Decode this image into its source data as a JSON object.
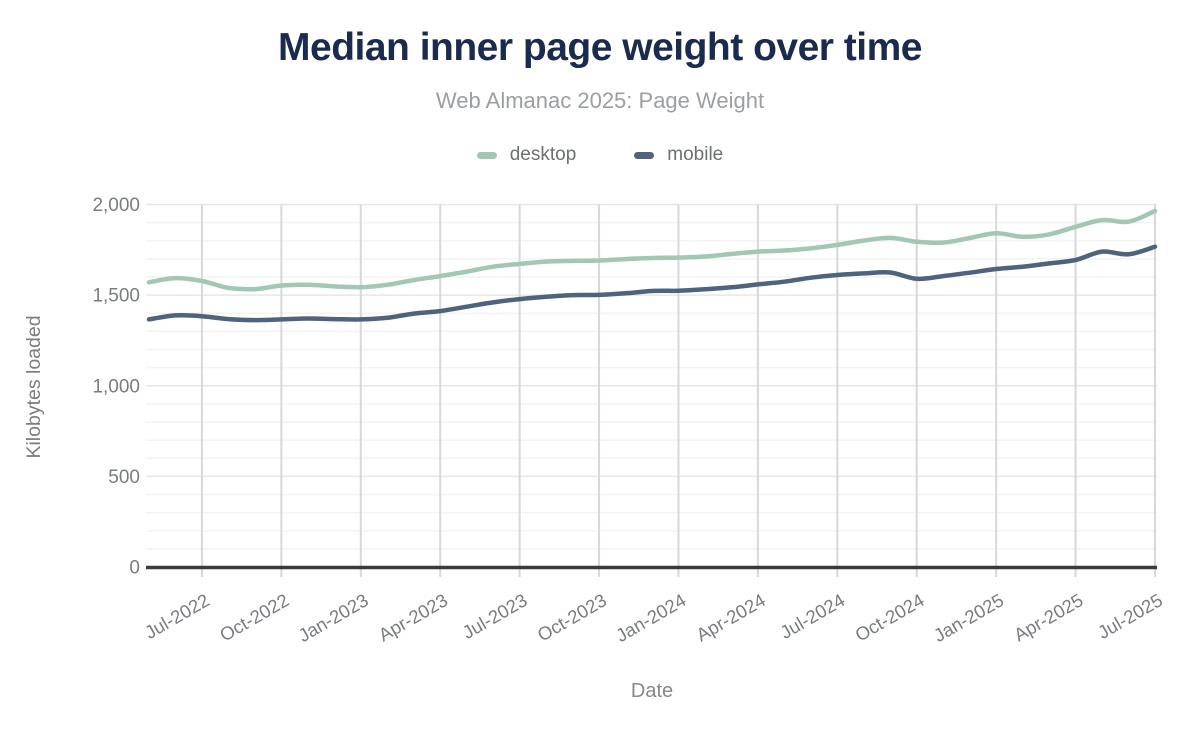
{
  "header": {
    "title": "Median inner page weight over time",
    "subtitle": "Web Almanac 2025: Page Weight"
  },
  "axes": {
    "y_title": "Kilobytes loaded",
    "x_title": "Date"
  },
  "colors": {
    "title": "#1b2b4d",
    "subtitle": "#9b9ea2",
    "axis_text": "#797c80",
    "vertical_gridline": "#d8d8d8",
    "major_gridline": "#e7e7e7",
    "minor_gridline": "#f3f3f3",
    "axis_line": "#3a3b3f",
    "background": "#ffffff",
    "desktop_series": "#a2c8b4",
    "mobile_series": "#4f637d"
  },
  "chart_data": {
    "type": "line",
    "title": "Median inner page weight over time",
    "subtitle": "Web Almanac 2025: Page Weight",
    "xlabel": "Date",
    "ylabel": "Kilobytes loaded",
    "ylim": [
      0,
      2000
    ],
    "grid": {
      "vertical_at_quarters": true,
      "horizontal_minor_step": 100,
      "horizontal_major_step": 500
    },
    "legend_position": "top",
    "x": [
      "May-2022",
      "Jun-2022",
      "Jul-2022",
      "Aug-2022",
      "Sep-2022",
      "Oct-2022",
      "Nov-2022",
      "Dec-2022",
      "Jan-2023",
      "Feb-2023",
      "Mar-2023",
      "Apr-2023",
      "May-2023",
      "Jun-2023",
      "Jul-2023",
      "Aug-2023",
      "Sep-2023",
      "Oct-2023",
      "Nov-2023",
      "Dec-2023",
      "Jan-2024",
      "Feb-2024",
      "Mar-2024",
      "Apr-2024",
      "May-2024",
      "Jun-2024",
      "Jul-2024",
      "Aug-2024",
      "Sep-2024",
      "Oct-2024",
      "Nov-2024",
      "Dec-2024",
      "Jan-2025",
      "Feb-2025",
      "Mar-2025",
      "Apr-2025",
      "May-2025",
      "Jun-2025",
      "Jul-2025"
    ],
    "series": [
      {
        "name": "desktop",
        "color": "#a2c8b4",
        "values": [
          1571,
          1594,
          1578,
          1540,
          1533,
          1553,
          1557,
          1548,
          1544,
          1557,
          1583,
          1605,
          1630,
          1657,
          1672,
          1685,
          1689,
          1691,
          1699,
          1705,
          1707,
          1713,
          1727,
          1740,
          1746,
          1758,
          1777,
          1801,
          1816,
          1795,
          1790,
          1815,
          1841,
          1822,
          1835,
          1877,
          1914,
          1905,
          1964
        ]
      },
      {
        "name": "mobile",
        "color": "#4f637d",
        "values": [
          1366,
          1388,
          1384,
          1368,
          1362,
          1366,
          1371,
          1368,
          1366,
          1375,
          1398,
          1412,
          1436,
          1460,
          1478,
          1491,
          1500,
          1501,
          1510,
          1523,
          1524,
          1532,
          1543,
          1559,
          1574,
          1596,
          1611,
          1620,
          1625,
          1590,
          1605,
          1624,
          1644,
          1657,
          1675,
          1694,
          1740,
          1725,
          1767
        ]
      }
    ],
    "yticks": {
      "values": [
        0,
        500,
        1000,
        1500,
        2000
      ],
      "labels": [
        "0",
        "500",
        "1,000",
        "1,500",
        "2,000"
      ]
    },
    "xticks": {
      "indices": [
        2,
        5,
        8,
        11,
        14,
        17,
        20,
        23,
        26,
        29,
        32,
        35,
        38
      ],
      "labels": [
        "Jul-2022",
        "Oct-2022",
        "Jan-2023",
        "Apr-2023",
        "Jul-2023",
        "Oct-2023",
        "Jan-2024",
        "Apr-2024",
        "Jul-2024",
        "Oct-2024",
        "Jan-2025",
        "Apr-2025",
        "Jul-2025"
      ],
      "rotation_deg": -30
    }
  }
}
